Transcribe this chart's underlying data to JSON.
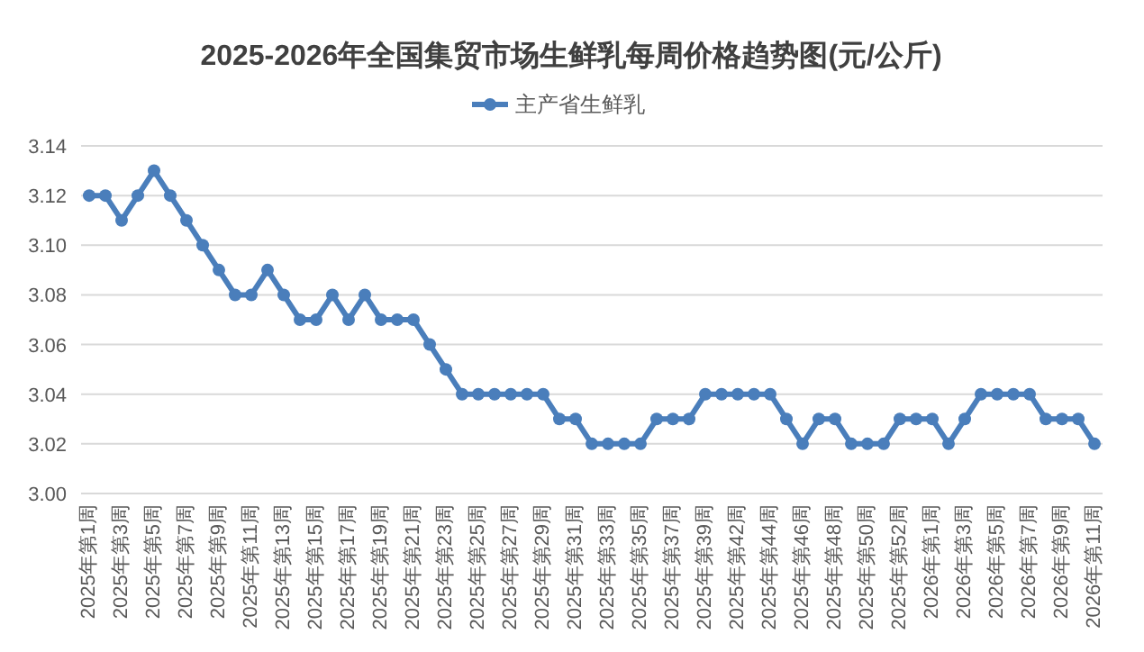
{
  "chart_data": {
    "type": "line",
    "title": "2025-2026年全国集贸市场生鲜乳每周价格趋势图(元/公斤)",
    "categories": [
      "2025年第1周",
      null,
      "2025年第3周",
      null,
      "2025年第5周",
      null,
      "2025年第7周",
      null,
      "2025年第9周",
      null,
      "2025年第11周",
      null,
      "2025年第13周",
      null,
      "2025年第15周",
      null,
      "2025年第17周",
      null,
      "2025年第19周",
      null,
      "2025年第21周",
      null,
      "2025年第23周",
      null,
      "2025年第25周",
      null,
      "2025年第27周",
      null,
      "2025年第29周",
      null,
      "2025年第31周",
      null,
      "2025年第33周",
      null,
      "2025年第35周",
      null,
      "2025年第37周",
      null,
      "2025年第39周",
      null,
      "2025年第42周",
      null,
      "2025年第44周",
      null,
      "2025年第46周",
      null,
      "2025年第48周",
      null,
      "2025年第50周",
      null,
      "2025年第52周",
      null,
      "2026年第1周",
      null,
      "2026年第3周",
      null,
      "2026年第5周",
      null,
      "2026年第7周",
      null,
      "2026年第9周",
      null,
      "2026年第11周"
    ],
    "series": [
      {
        "name": "主产省生鲜乳",
        "color": "#4a7ebb",
        "values": [
          3.12,
          3.12,
          3.11,
          3.12,
          3.13,
          3.12,
          3.11,
          3.1,
          3.09,
          3.08,
          3.08,
          3.09,
          3.08,
          3.07,
          3.07,
          3.08,
          3.07,
          3.08,
          3.07,
          3.07,
          3.07,
          3.06,
          3.05,
          3.04,
          3.04,
          3.04,
          3.04,
          3.04,
          3.04,
          3.03,
          3.03,
          3.02,
          3.02,
          3.02,
          3.02,
          3.03,
          3.03,
          3.03,
          3.04,
          3.04,
          3.04,
          3.04,
          3.04,
          3.03,
          3.02,
          3.03,
          3.03,
          3.02,
          3.02,
          3.02,
          3.03,
          3.03,
          3.03,
          3.02,
          3.03,
          3.04,
          3.04,
          3.04,
          3.04,
          3.03,
          3.03,
          3.03,
          3.02
        ]
      }
    ],
    "ylim": [
      3.0,
      3.14
    ],
    "yticks": [
      {
        "value": 3.0,
        "label": "3.00"
      },
      3.02,
      3.04,
      3.06,
      3.08,
      {
        "value": 3.1,
        "label": "3.10"
      },
      3.12,
      3.14
    ],
    "grid": "y",
    "legend": "top",
    "marker": "circle",
    "line_style": "solid"
  }
}
